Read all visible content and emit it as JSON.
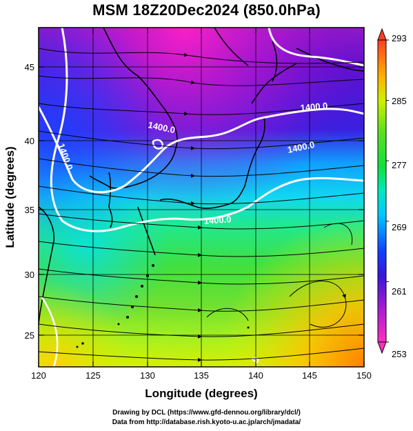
{
  "title": "MSM 18Z20Dec2024 (850.0hPa)",
  "xlabel": "Longitude (degrees)",
  "ylabel": "Latitude  (degrees)",
  "x_ticks": [
    "120",
    "125",
    "130",
    "135",
    "140",
    "145",
    "150"
  ],
  "y_ticks": [
    "25",
    "30",
    "35",
    "40",
    "45"
  ],
  "colorbar": {
    "ticks": [
      "253",
      "261",
      "269",
      "277",
      "285",
      "293"
    ],
    "min": 253,
    "max": 293
  },
  "contour_labels": [
    "1400.0",
    "1400.0",
    "1400.0",
    "1400.0",
    "1400.0"
  ],
  "credits": [
    "Drawing by DCL (https://www.gfd-dennou.org/library/dcl/)",
    "Data from http://database.rish.kyoto-u.ac.jp/arch/jmadata/"
  ],
  "chart_data": {
    "type": "heatmap",
    "title": "MSM 18Z20Dec2024 (850.0hPa)",
    "xlabel": "Longitude (degrees)",
    "ylabel": "Latitude  (degrees)",
    "xlim": [
      120,
      150
    ],
    "ylim": [
      22.4,
      47.6
    ],
    "color_range": [
      253,
      293
    ],
    "contour_value": 1400.0,
    "vectors": "streamlines"
  }
}
